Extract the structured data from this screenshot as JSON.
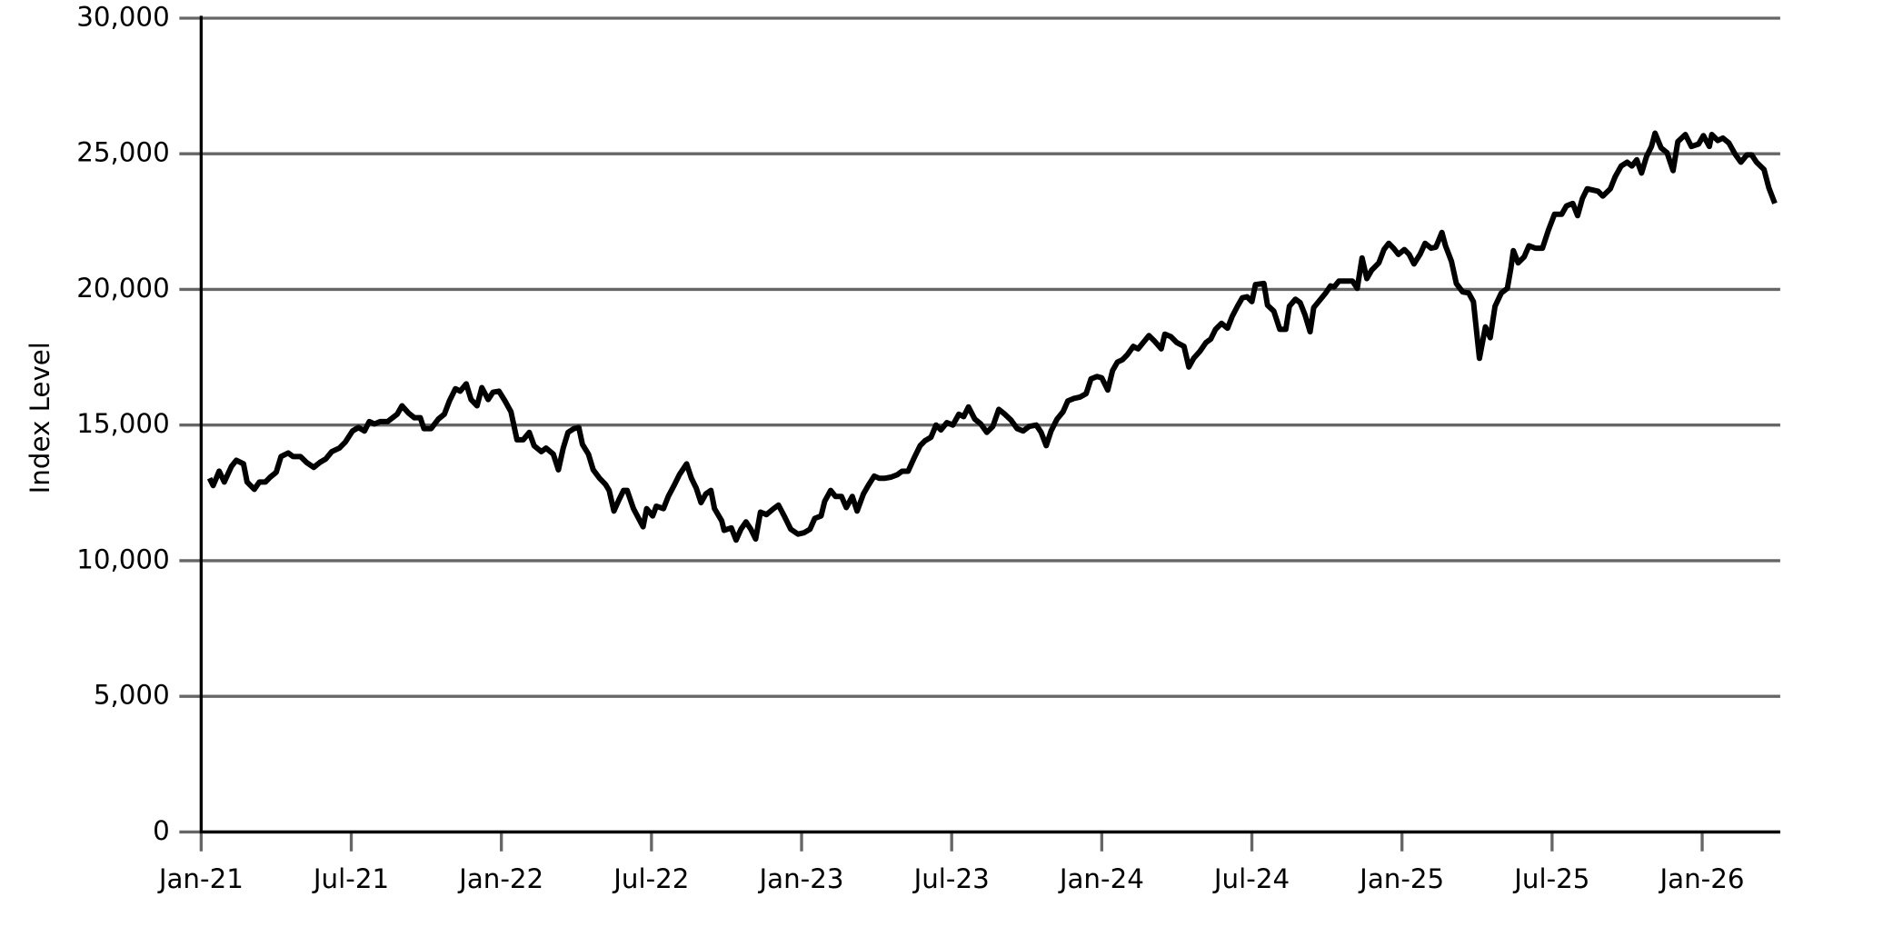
{
  "chart_data": {
    "type": "line",
    "ylabel": "Index Level",
    "color": "#000000",
    "grid": true,
    "xlim": [
      2021,
      2026.26
    ],
    "xticks": [
      {
        "value": 2021,
        "label": "Jan-21"
      },
      {
        "value": 2021.5,
        "label": "Jul-21"
      },
      {
        "value": 2022,
        "label": "Jan-22"
      },
      {
        "value": 2022.5,
        "label": "Jul-22"
      },
      {
        "value": 2023,
        "label": "Jan-23"
      },
      {
        "value": 2023.5,
        "label": "Jul-23"
      },
      {
        "value": 2024,
        "label": "Jan-24"
      },
      {
        "value": 2024.5,
        "label": "Jul-24"
      },
      {
        "value": 2025,
        "label": "Jan-25"
      },
      {
        "value": 2025.5,
        "label": "Jul-25"
      },
      {
        "value": 2026,
        "label": "Jan-26"
      }
    ],
    "ylim": [
      0,
      30000
    ],
    "yticks": [
      0,
      {
        "value": 5000,
        "label": "5,000"
      },
      {
        "value": 10000,
        "label": "10,000"
      },
      {
        "value": 15000,
        "label": "15,000"
      },
      {
        "value": 20000,
        "label": "20,000"
      },
      {
        "value": 25000,
        "label": "25,000"
      },
      {
        "value": 30000,
        "label": "30,000"
      }
    ],
    "x": [
      2021.028,
      2021.04,
      2021.06,
      2021.077,
      2021.101,
      2021.117,
      2021.141,
      2021.153,
      2021.177,
      2021.194,
      2021.214,
      2021.23,
      2021.25,
      2021.266,
      2021.29,
      2021.306,
      2021.331,
      2021.351,
      2021.375,
      2021.395,
      2021.415,
      2021.435,
      2021.46,
      2021.48,
      2021.504,
      2021.524,
      2021.544,
      2021.56,
      2021.577,
      2021.597,
      2021.621,
      2021.653,
      2021.669,
      2021.69,
      2021.71,
      2021.73,
      2021.742,
      2021.766,
      2021.79,
      2021.81,
      2021.827,
      2021.847,
      2021.863,
      2021.883,
      2021.899,
      2021.919,
      2021.935,
      2021.956,
      2021.972,
      2021.992,
      2022.012,
      2022.032,
      2022.052,
      2022.073,
      2022.093,
      2022.109,
      2022.133,
      2022.149,
      2022.173,
      2022.19,
      2022.206,
      2022.222,
      2022.242,
      2022.258,
      2022.27,
      2022.29,
      2022.306,
      2022.327,
      2022.347,
      2022.359,
      2022.375,
      2022.391,
      2022.407,
      2022.419,
      2022.44,
      2022.472,
      2022.484,
      2022.504,
      2022.516,
      2022.54,
      2022.556,
      2022.577,
      2022.593,
      2022.617,
      2022.633,
      2022.649,
      2022.665,
      2022.681,
      2022.698,
      2022.71,
      2022.734,
      2022.742,
      2022.766,
      2022.782,
      2022.798,
      2022.815,
      2022.831,
      2022.847,
      2022.863,
      2022.883,
      2022.907,
      2022.923,
      2022.944,
      2022.964,
      2022.988,
      2023.008,
      2023.028,
      2023.044,
      2023.065,
      2023.077,
      2023.097,
      2023.113,
      2023.133,
      2023.149,
      2023.169,
      2023.185,
      2023.206,
      2023.222,
      2023.242,
      2023.258,
      2023.278,
      2023.298,
      2023.319,
      2023.335,
      2023.355,
      2023.375,
      2023.395,
      2023.411,
      2023.431,
      2023.448,
      2023.464,
      2023.484,
      2023.504,
      2023.524,
      2023.54,
      2023.556,
      2023.577,
      2023.597,
      2023.617,
      2023.637,
      2023.657,
      2023.677,
      2023.698,
      2023.718,
      2023.738,
      2023.758,
      2023.782,
      2023.798,
      2023.815,
      2023.831,
      2023.851,
      2023.871,
      2023.887,
      2023.907,
      2023.927,
      2023.948,
      2023.964,
      2023.984,
      2024.0,
      2024.02,
      2024.036,
      2024.052,
      2024.069,
      2024.085,
      2024.105,
      2024.121,
      2024.141,
      2024.157,
      2024.177,
      2024.198,
      2024.21,
      2024.23,
      2024.25,
      2024.274,
      2024.29,
      2024.306,
      2024.327,
      2024.347,
      2024.363,
      2024.379,
      2024.399,
      2024.419,
      2024.435,
      2024.452,
      2024.468,
      2024.484,
      2024.5,
      2024.512,
      2024.54,
      2024.552,
      2024.573,
      2024.593,
      2024.613,
      2024.625,
      2024.645,
      2024.661,
      2024.677,
      2024.694,
      2024.706,
      2024.726,
      2024.746,
      2024.762,
      2024.774,
      2024.79,
      2024.815,
      2024.835,
      2024.851,
      2024.867,
      2024.883,
      2024.899,
      2024.923,
      2024.94,
      2024.956,
      2024.972,
      2024.988,
      2025.008,
      2025.024,
      2025.04,
      2025.06,
      2025.077,
      2025.097,
      2025.113,
      2025.133,
      2025.145,
      2025.165,
      2025.181,
      2025.202,
      2025.222,
      2025.238,
      2025.258,
      2025.278,
      2025.294,
      2025.31,
      2025.331,
      2025.351,
      2025.363,
      2025.371,
      2025.387,
      2025.407,
      2025.423,
      2025.444,
      2025.468,
      2025.488,
      2025.508,
      2025.532,
      2025.548,
      2025.569,
      2025.585,
      2025.601,
      2025.617,
      2025.637,
      2025.653,
      2025.669,
      2025.694,
      2025.71,
      2025.73,
      2025.75,
      2025.766,
      2025.782,
      2025.798,
      2025.815,
      2025.831,
      2025.843,
      2025.863,
      2025.883,
      2025.903,
      2025.919,
      2025.944,
      2025.964,
      2025.988,
      2026.004,
      2026.024,
      2026.032,
      2026.052,
      2026.069,
      2026.089,
      2026.109,
      2026.129,
      2026.149,
      2026.165,
      2026.181,
      2026.206,
      2026.222,
      2026.242
    ],
    "values": [
      13040,
      12770,
      13300,
      12900,
      13480,
      13700,
      13570,
      12900,
      12630,
      12900,
      12900,
      13080,
      13260,
      13840,
      13970,
      13840,
      13840,
      13620,
      13440,
      13620,
      13750,
      14020,
      14150,
      14370,
      14780,
      14910,
      14780,
      15130,
      15040,
      15130,
      15130,
      15400,
      15710,
      15450,
      15270,
      15270,
      14870,
      14870,
      15220,
      15400,
      15890,
      16340,
      16250,
      16520,
      15940,
      15710,
      16380,
      15940,
      16210,
      16250,
      15890,
      15490,
      14460,
      14460,
      14730,
      14240,
      14020,
      14150,
      13930,
      13350,
      14150,
      14730,
      14870,
      14910,
      14290,
      13930,
      13350,
      13040,
      12810,
      12590,
      11830,
      12230,
      12590,
      12590,
      11920,
      11250,
      11920,
      11650,
      12010,
      11920,
      12370,
      12810,
      13170,
      13570,
      13040,
      12680,
      12140,
      12460,
      12590,
      11920,
      11470,
      11120,
      11210,
      10760,
      11160,
      11430,
      11160,
      10800,
      11790,
      11700,
      11920,
      12050,
      11610,
      11160,
      10980,
      11030,
      11160,
      11560,
      11650,
      12190,
      12590,
      12370,
      12370,
      11960,
      12370,
      11830,
      12460,
      12770,
      13120,
      13040,
      13040,
      13080,
      13170,
      13300,
      13300,
      13790,
      14240,
      14420,
      14550,
      15000,
      14820,
      15090,
      15000,
      15400,
      15310,
      15670,
      15220,
      15040,
      14730,
      14950,
      15580,
      15400,
      15180,
      14870,
      14780,
      14950,
      15000,
      14730,
      14240,
      14780,
      15220,
      15490,
      15890,
      15980,
      16030,
      16160,
      16700,
      16790,
      16740,
      16290,
      17010,
      17320,
      17410,
      17590,
      17900,
      17810,
      18080,
      18300,
      18080,
      17810,
      18350,
      18260,
      18040,
      17900,
      17140,
      17460,
      17720,
      18040,
      18170,
      18530,
      18750,
      18570,
      19020,
      19380,
      19690,
      19730,
      19550,
      20180,
      20220,
      19420,
      19200,
      18530,
      18530,
      19380,
      19640,
      19510,
      19060,
      18440,
      19330,
      19600,
      19870,
      20130,
      20090,
      20310,
      20310,
      20310,
      20040,
      21160,
      20400,
      20710,
      20980,
      21470,
      21700,
      21520,
      21290,
      21470,
      21290,
      20940,
      21290,
      21700,
      21520,
      21560,
      22100,
      21610,
      21030,
      20220,
      19910,
      19870,
      19550,
      17460,
      18620,
      18220,
      19380,
      19870,
      20040,
      20800,
      21430,
      20980,
      21200,
      21610,
      21520,
      21520,
      22190,
      22770,
      22770,
      23080,
      23170,
      22720,
      23350,
      23710,
      23660,
      23620,
      23440,
      23710,
      24150,
      24550,
      24690,
      24550,
      24780,
      24290,
      24910,
      25270,
      25760,
      25220,
      25040,
      24380,
      25450,
      25710,
      25270,
      25360,
      25670,
      25270,
      25710,
      25490,
      25580,
      25400,
      25000,
      24690,
      24960,
      24960,
      24690,
      24420,
      23750,
      23170
    ]
  }
}
